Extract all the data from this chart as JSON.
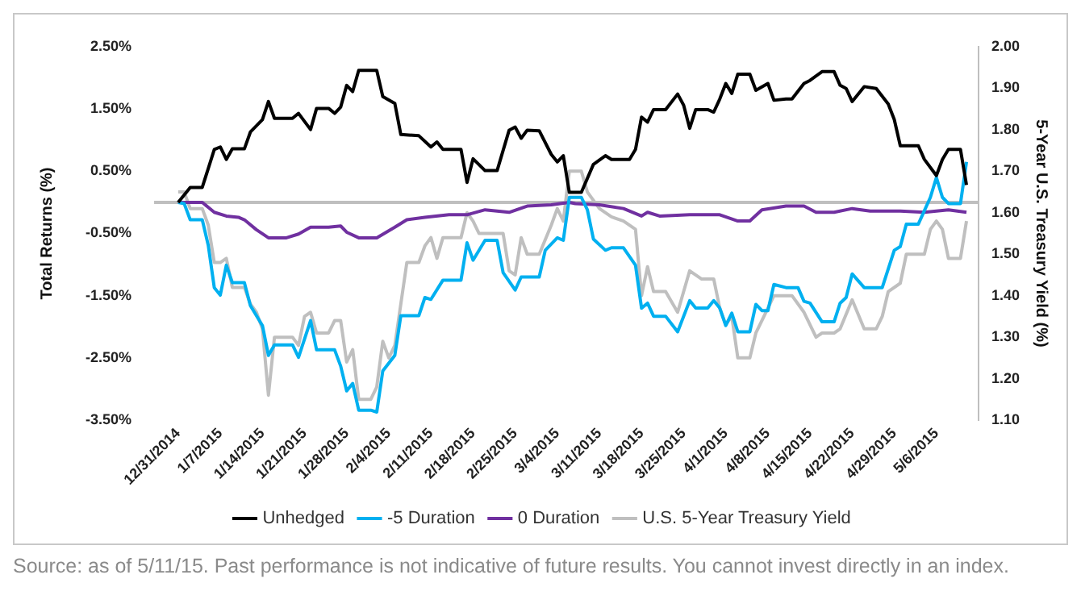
{
  "chart_data": {
    "type": "line",
    "ylabel": "Total Returns (%)",
    "y2label": "5-Year U.S. Treasury Yield (%)",
    "xlim": [
      "2014-12-27",
      "2015-05-13"
    ],
    "xticks": [
      {
        "value": "2014-12-31",
        "label": "12/31/2014"
      },
      {
        "value": "2015-01-07",
        "label": "1/7/2015"
      },
      {
        "value": "2015-01-14",
        "label": "1/14/2015"
      },
      {
        "value": "2015-01-21",
        "label": "1/21/2015"
      },
      {
        "value": "2015-01-28",
        "label": "1/28/2015"
      },
      {
        "value": "2015-02-04",
        "label": "2/4/2015"
      },
      {
        "value": "2015-02-11",
        "label": "2/11/2015"
      },
      {
        "value": "2015-02-18",
        "label": "2/18/2015"
      },
      {
        "value": "2015-02-25",
        "label": "2/25/2015"
      },
      {
        "value": "2015-03-04",
        "label": "3/4/2015"
      },
      {
        "value": "2015-03-11",
        "label": "3/11/2015"
      },
      {
        "value": "2015-03-18",
        "label": "3/18/2015"
      },
      {
        "value": "2015-03-25",
        "label": "3/25/2015"
      },
      {
        "value": "2015-04-01",
        "label": "4/1/2015"
      },
      {
        "value": "2015-04-08",
        "label": "4/8/2015"
      },
      {
        "value": "2015-04-15",
        "label": "4/15/2015"
      },
      {
        "value": "2015-04-22",
        "label": "4/22/2015"
      },
      {
        "value": "2015-04-29",
        "label": "4/29/2015"
      },
      {
        "value": "2015-05-06",
        "label": "5/6/2015"
      }
    ],
    "ylim": [
      -3.5,
      2.5
    ],
    "yticks": [
      {
        "value": -3.5,
        "label": "-3.50%"
      },
      {
        "value": -2.5,
        "label": "-2.50%"
      },
      {
        "value": -1.5,
        "label": "-1.50%"
      },
      {
        "value": -0.5,
        "label": "-0.50%"
      },
      {
        "value": 0.5,
        "label": "0.50%"
      },
      {
        "value": 1.5,
        "label": "1.50%"
      },
      {
        "value": 2.5,
        "label": "2.50%"
      }
    ],
    "y2lim": [
      1.1,
      2.0
    ],
    "y2ticks": [
      {
        "value": 1.1,
        "label": "1.10"
      },
      {
        "value": 1.2,
        "label": "1.20"
      },
      {
        "value": 1.3,
        "label": "1.30"
      },
      {
        "value": 1.4,
        "label": "1.40"
      },
      {
        "value": 1.5,
        "label": "1.50"
      },
      {
        "value": 1.6,
        "label": "1.60"
      },
      {
        "value": 1.7,
        "label": "1.70"
      },
      {
        "value": 1.8,
        "label": "1.80"
      },
      {
        "value": 1.9,
        "label": "1.90"
      },
      {
        "value": 2.0,
        "label": "2.00"
      }
    ],
    "grid": false,
    "legend": "bottom",
    "ref_lines": [
      {
        "axis": "y",
        "value": 0,
        "color": "#bfbfbf"
      }
    ],
    "annotations": [
      "Source: as of 5/11/15. Past performance is not indicative of future results. You cannot invest directly in an index."
    ],
    "series": [
      {
        "name": "Unhedged",
        "color": "#000000",
        "x": [
          "2014-12-31",
          "2015-01-02",
          "2015-01-04",
          "2015-01-06",
          "2015-01-07",
          "2015-01-08",
          "2015-01-09",
          "2015-01-11",
          "2015-01-12",
          "2015-01-14",
          "2015-01-15",
          "2015-01-16",
          "2015-01-19",
          "2015-01-20",
          "2015-01-22",
          "2015-01-23",
          "2015-01-25",
          "2015-01-26",
          "2015-01-27",
          "2015-01-28",
          "2015-01-29",
          "2015-01-30",
          "2015-02-02",
          "2015-02-03",
          "2015-02-05",
          "2015-02-06",
          "2015-02-09",
          "2015-02-11",
          "2015-02-12",
          "2015-02-13",
          "2015-02-16",
          "2015-02-17",
          "2015-02-18",
          "2015-02-20",
          "2015-02-22",
          "2015-02-24",
          "2015-02-25",
          "2015-02-26",
          "2015-02-27",
          "2015-03-01",
          "2015-03-03",
          "2015-03-04",
          "2015-03-05",
          "2015-03-06",
          "2015-03-08",
          "2015-03-10",
          "2015-03-12",
          "2015-03-13",
          "2015-03-16",
          "2015-03-17",
          "2015-03-18",
          "2015-03-19",
          "2015-03-20",
          "2015-03-22",
          "2015-03-24",
          "2015-03-25",
          "2015-03-26",
          "2015-03-27",
          "2015-03-29",
          "2015-03-30",
          "2015-03-31",
          "2015-04-01",
          "2015-04-02",
          "2015-04-03",
          "2015-04-05",
          "2015-04-06",
          "2015-04-08",
          "2015-04-09",
          "2015-04-11",
          "2015-04-12",
          "2015-04-14",
          "2015-04-15",
          "2015-04-17",
          "2015-04-19",
          "2015-04-20",
          "2015-04-21",
          "2015-04-22",
          "2015-04-24",
          "2015-04-26",
          "2015-04-28",
          "2015-04-29",
          "2015-04-30",
          "2015-05-03",
          "2015-05-04",
          "2015-05-06",
          "2015-05-07",
          "2015-05-08",
          "2015-05-10",
          "2015-05-11"
        ],
        "values": [
          0,
          0.24,
          0.24,
          0.85,
          0.89,
          0.69,
          0.86,
          0.86,
          1.13,
          1.33,
          1.62,
          1.35,
          1.35,
          1.43,
          1.17,
          1.51,
          1.51,
          1.43,
          1.53,
          1.88,
          1.78,
          2.12,
          2.12,
          1.7,
          1.59,
          1.09,
          1.07,
          0.89,
          0.97,
          0.85,
          0.85,
          0.32,
          0.7,
          0.51,
          0.51,
          1.16,
          1.21,
          1.03,
          1.16,
          1.15,
          0.77,
          0.65,
          0.75,
          0.16,
          0.16,
          0.61,
          0.75,
          0.69,
          0.69,
          0.85,
          1.37,
          1.29,
          1.49,
          1.49,
          1.74,
          1.56,
          1.19,
          1.49,
          1.49,
          1.45,
          1.66,
          1.91,
          1.75,
          2.06,
          2.06,
          1.8,
          1.91,
          1.64,
          1.66,
          1.66,
          1.91,
          1.96,
          2.1,
          2.1,
          1.88,
          1.83,
          1.62,
          1.86,
          1.83,
          1.58,
          1.33,
          0.91,
          0.91,
          0.69,
          0.43,
          0.69,
          0.85,
          0.85,
          0.28
        ]
      },
      {
        "name": "-5 Duration",
        "color": "#00b0f0",
        "x": [
          "2014-12-31",
          "2015-01-01",
          "2015-01-02",
          "2015-01-04",
          "2015-01-05",
          "2015-01-06",
          "2015-01-07",
          "2015-01-08",
          "2015-01-09",
          "2015-01-11",
          "2015-01-12",
          "2015-01-14",
          "2015-01-15",
          "2015-01-16",
          "2015-01-19",
          "2015-01-20",
          "2015-01-22",
          "2015-01-23",
          "2015-01-26",
          "2015-01-27",
          "2015-01-28",
          "2015-01-29",
          "2015-01-30",
          "2015-02-01",
          "2015-02-02",
          "2015-02-03",
          "2015-02-05",
          "2015-02-06",
          "2015-02-09",
          "2015-02-10",
          "2015-02-11",
          "2015-02-13",
          "2015-02-16",
          "2015-02-17",
          "2015-02-18",
          "2015-02-20",
          "2015-02-22",
          "2015-02-23",
          "2015-02-25",
          "2015-02-26",
          "2015-03-01",
          "2015-03-02",
          "2015-03-04",
          "2015-03-05",
          "2015-03-06",
          "2015-03-08",
          "2015-03-09",
          "2015-03-10",
          "2015-03-12",
          "2015-03-13",
          "2015-03-15",
          "2015-03-17",
          "2015-03-18",
          "2015-03-19",
          "2015-03-20",
          "2015-03-22",
          "2015-03-24",
          "2015-03-26",
          "2015-03-27",
          "2015-03-29",
          "2015-03-30",
          "2015-03-31",
          "2015-04-01",
          "2015-04-02",
          "2015-04-03",
          "2015-04-05",
          "2015-04-06",
          "2015-04-07",
          "2015-04-08",
          "2015-04-09",
          "2015-04-11",
          "2015-04-13",
          "2015-04-14",
          "2015-04-15",
          "2015-04-17",
          "2015-04-19",
          "2015-04-20",
          "2015-04-21",
          "2015-04-22",
          "2015-04-24",
          "2015-04-27",
          "2015-04-29",
          "2015-04-30",
          "2015-05-01",
          "2015-05-03",
          "2015-05-05",
          "2015-05-06",
          "2015-05-07",
          "2015-05-08",
          "2015-05-10",
          "2015-05-11"
        ],
        "values": [
          0,
          -0.02,
          -0.28,
          -0.28,
          -0.69,
          -1.37,
          -1.49,
          -1.01,
          -1.29,
          -1.29,
          -1.66,
          -1.98,
          -2.46,
          -2.29,
          -2.29,
          -2.49,
          -1.9,
          -2.37,
          -2.37,
          -2.63,
          -3.03,
          -2.91,
          -3.34,
          -3.34,
          -3.37,
          -2.71,
          -2.46,
          -1.82,
          -1.82,
          -1.53,
          -1.56,
          -1.25,
          -1.25,
          -0.65,
          -0.93,
          -0.61,
          -0.61,
          -1.13,
          -1.41,
          -1.2,
          -1.2,
          -0.77,
          -0.57,
          -0.61,
          0.08,
          0.08,
          -0.12,
          -0.59,
          -0.77,
          -0.73,
          -0.73,
          -1.01,
          -1.7,
          -1.62,
          -1.83,
          -1.83,
          -2.08,
          -1.58,
          -1.7,
          -1.7,
          -1.58,
          -1.7,
          -1.98,
          -1.78,
          -2.08,
          -2.08,
          -1.64,
          -1.74,
          -1.74,
          -1.32,
          -1.37,
          -1.37,
          -1.59,
          -1.62,
          -1.92,
          -1.92,
          -1.62,
          -1.53,
          -1.15,
          -1.37,
          -1.37,
          -0.77,
          -0.71,
          -0.35,
          -0.35,
          0.08,
          0.4,
          0.08,
          -0.02,
          -0.02,
          0.65
        ]
      },
      {
        "name": "0 Duration",
        "color": "#7030a0",
        "x": [
          "2014-12-31",
          "2015-01-04",
          "2015-01-06",
          "2015-01-08",
          "2015-01-10",
          "2015-01-11",
          "2015-01-13",
          "2015-01-15",
          "2015-01-18",
          "2015-01-20",
          "2015-01-22",
          "2015-01-25",
          "2015-01-27",
          "2015-01-28",
          "2015-01-30",
          "2015-02-02",
          "2015-02-05",
          "2015-02-07",
          "2015-02-10",
          "2015-02-14",
          "2015-02-17",
          "2015-02-20",
          "2015-02-24",
          "2015-02-27",
          "2015-03-03",
          "2015-03-06",
          "2015-03-07",
          "2015-03-11",
          "2015-03-15",
          "2015-03-18",
          "2015-03-19",
          "2015-03-21",
          "2015-03-26",
          "2015-03-31",
          "2015-04-03",
          "2015-04-05",
          "2015-04-07",
          "2015-04-11",
          "2015-04-14",
          "2015-04-16",
          "2015-04-19",
          "2015-04-22",
          "2015-04-25",
          "2015-04-30",
          "2015-05-04",
          "2015-05-08",
          "2015-05-11"
        ],
        "values": [
          0,
          0,
          -0.16,
          -0.22,
          -0.24,
          -0.28,
          -0.44,
          -0.57,
          -0.57,
          -0.51,
          -0.4,
          -0.4,
          -0.38,
          -0.48,
          -0.57,
          -0.57,
          -0.4,
          -0.28,
          -0.24,
          -0.2,
          -0.2,
          -0.12,
          -0.16,
          -0.06,
          -0.04,
          0,
          -0.02,
          -0.04,
          -0.1,
          -0.22,
          -0.16,
          -0.22,
          -0.2,
          -0.2,
          -0.3,
          -0.3,
          -0.12,
          -0.06,
          -0.06,
          -0.16,
          -0.16,
          -0.1,
          -0.14,
          -0.14,
          -0.16,
          -0.12,
          -0.16
        ]
      },
      {
        "name": "U.S. 5-Year Treasury Yield",
        "color": "#bfbfbf",
        "axis": "y2",
        "x": [
          "2014-12-31",
          "2015-01-01",
          "2015-01-02",
          "2015-01-04",
          "2015-01-05",
          "2015-01-06",
          "2015-01-07",
          "2015-01-08",
          "2015-01-09",
          "2015-01-11",
          "2015-01-12",
          "2015-01-13",
          "2015-01-14",
          "2015-01-15",
          "2015-01-16",
          "2015-01-19",
          "2015-01-20",
          "2015-01-21",
          "2015-01-22",
          "2015-01-23",
          "2015-01-25",
          "2015-01-26",
          "2015-01-27",
          "2015-01-28",
          "2015-01-29",
          "2015-01-30",
          "2015-02-01",
          "2015-02-02",
          "2015-02-03",
          "2015-02-04",
          "2015-02-05",
          "2015-02-07",
          "2015-02-09",
          "2015-02-10",
          "2015-02-11",
          "2015-02-12",
          "2015-02-13",
          "2015-02-16",
          "2015-02-17",
          "2015-02-18",
          "2015-02-19",
          "2015-02-23",
          "2015-02-24",
          "2015-02-25",
          "2015-02-26",
          "2015-02-27",
          "2015-03-01",
          "2015-03-03",
          "2015-03-04",
          "2015-03-05",
          "2015-03-06",
          "2015-03-08",
          "2015-03-09",
          "2015-03-11",
          "2015-03-13",
          "2015-03-15",
          "2015-03-17",
          "2015-03-18",
          "2015-03-19",
          "2015-03-20",
          "2015-03-22",
          "2015-03-24",
          "2015-03-26",
          "2015-03-28",
          "2015-03-30",
          "2015-03-31",
          "2015-04-01",
          "2015-04-02",
          "2015-04-03",
          "2015-04-05",
          "2015-04-06",
          "2015-04-07",
          "2015-04-09",
          "2015-04-12",
          "2015-04-14",
          "2015-04-16",
          "2015-04-17",
          "2015-04-19",
          "2015-04-20",
          "2015-04-22",
          "2015-04-24",
          "2015-04-26",
          "2015-04-27",
          "2015-04-28",
          "2015-04-30",
          "2015-05-01",
          "2015-05-04",
          "2015-05-05",
          "2015-05-06",
          "2015-05-07",
          "2015-05-08",
          "2015-05-10",
          "2015-05-11"
        ],
        "values": [
          1.65,
          1.65,
          1.61,
          1.61,
          1.57,
          1.48,
          1.48,
          1.49,
          1.42,
          1.42,
          1.38,
          1.36,
          1.32,
          1.16,
          1.3,
          1.3,
          1.28,
          1.35,
          1.36,
          1.31,
          1.31,
          1.34,
          1.34,
          1.24,
          1.27,
          1.15,
          1.15,
          1.18,
          1.29,
          1.25,
          1.28,
          1.48,
          1.48,
          1.52,
          1.54,
          1.49,
          1.54,
          1.54,
          1.6,
          1.58,
          1.55,
          1.55,
          1.46,
          1.45,
          1.54,
          1.5,
          1.5,
          1.57,
          1.61,
          1.58,
          1.7,
          1.7,
          1.65,
          1.61,
          1.59,
          1.58,
          1.56,
          1.4,
          1.47,
          1.41,
          1.41,
          1.36,
          1.46,
          1.44,
          1.44,
          1.37,
          1.33,
          1.35,
          1.25,
          1.25,
          1.31,
          1.34,
          1.4,
          1.4,
          1.36,
          1.3,
          1.31,
          1.31,
          1.32,
          1.39,
          1.32,
          1.32,
          1.35,
          1.41,
          1.43,
          1.5,
          1.5,
          1.56,
          1.58,
          1.56,
          1.49,
          1.49,
          1.58
        ]
      }
    ]
  }
}
